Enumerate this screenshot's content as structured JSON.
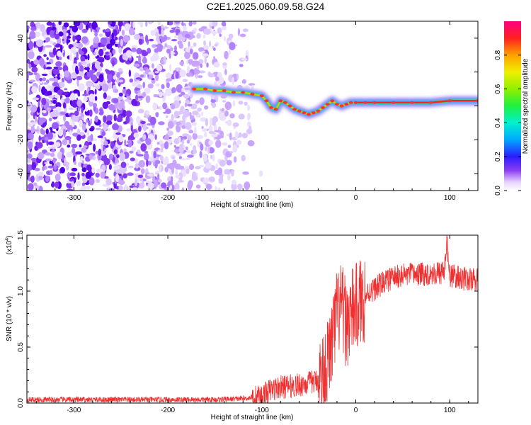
{
  "title": "C2E1.2025.060.09.58.G24",
  "chart_data": [
    {
      "type": "heatmap",
      "xlabel": "Height of straight line (km)",
      "ylabel": "Frequency (Hz)",
      "xlim": [
        -350,
        130
      ],
      "ylim": [
        -50,
        50
      ],
      "x_ticks": [
        "-300",
        "-200",
        "-100",
        "0",
        "100"
      ],
      "y_ticks": [
        "-40",
        "-20",
        "0",
        "20",
        "40"
      ],
      "colorbar": {
        "label": "Normalized spectral amplitude",
        "range": [
          0,
          1
        ],
        "ticks": [
          "0.0",
          "0.2",
          "0.4",
          "0.6",
          "0.8"
        ]
      },
      "ridge": {
        "x": [
          -172,
          -160,
          -150,
          -140,
          -130,
          -120,
          -110,
          -100,
          -95,
          -90,
          -85,
          -80,
          -75,
          -70,
          -65,
          -60,
          -55,
          -50,
          -45,
          -40,
          -35,
          -30,
          -25,
          -20,
          -15,
          -10,
          -5,
          0,
          10,
          20,
          40,
          60,
          80,
          100,
          130
        ],
        "y": [
          10,
          10,
          9,
          9,
          8,
          8,
          7,
          6,
          3,
          -1,
          -2,
          3,
          2,
          0,
          -2,
          -3,
          -4,
          -5,
          -4,
          -3,
          -1,
          1,
          3,
          1,
          0,
          1,
          2,
          2,
          2,
          2,
          2,
          2,
          2,
          3,
          3
        ]
      }
    },
    {
      "type": "line",
      "xlabel": "Height of straight line (km)",
      "ylabel": "SNR (10 * v/v)",
      "y_multiplier": "(x10",
      "y_multiplier_exp": "4",
      "xlim": [
        -350,
        130
      ],
      "ylim": [
        0,
        1.5
      ],
      "x_ticks": [
        "-300",
        "-200",
        "-100",
        "0",
        "100"
      ],
      "y_ticks": [
        "0.0",
        "0.5",
        "1.0",
        "1.5"
      ],
      "series": [
        {
          "color": "#f03030",
          "x": [
            -350,
            -300,
            -250,
            -200,
            -150,
            -120,
            -100,
            -90,
            -80,
            -70,
            -60,
            -50,
            -40,
            -35,
            -30,
            -25,
            -20,
            -15,
            -10,
            -5,
            0,
            5,
            10,
            15,
            20,
            30,
            40,
            50,
            60,
            70,
            80,
            90,
            95,
            97,
            100,
            110,
            120,
            130
          ],
          "y": [
            0.03,
            0.03,
            0.03,
            0.03,
            0.03,
            0.04,
            0.06,
            0.12,
            0.14,
            0.15,
            0.16,
            0.18,
            0.2,
            0.25,
            0.35,
            0.55,
            0.8,
            0.85,
            0.7,
            0.8,
            0.85,
            0.9,
            0.95,
            1.0,
            1.02,
            1.08,
            1.12,
            1.14,
            1.15,
            1.15,
            1.16,
            1.16,
            1.2,
            1.45,
            1.14,
            1.12,
            1.1,
            1.1
          ]
        }
      ]
    }
  ]
}
